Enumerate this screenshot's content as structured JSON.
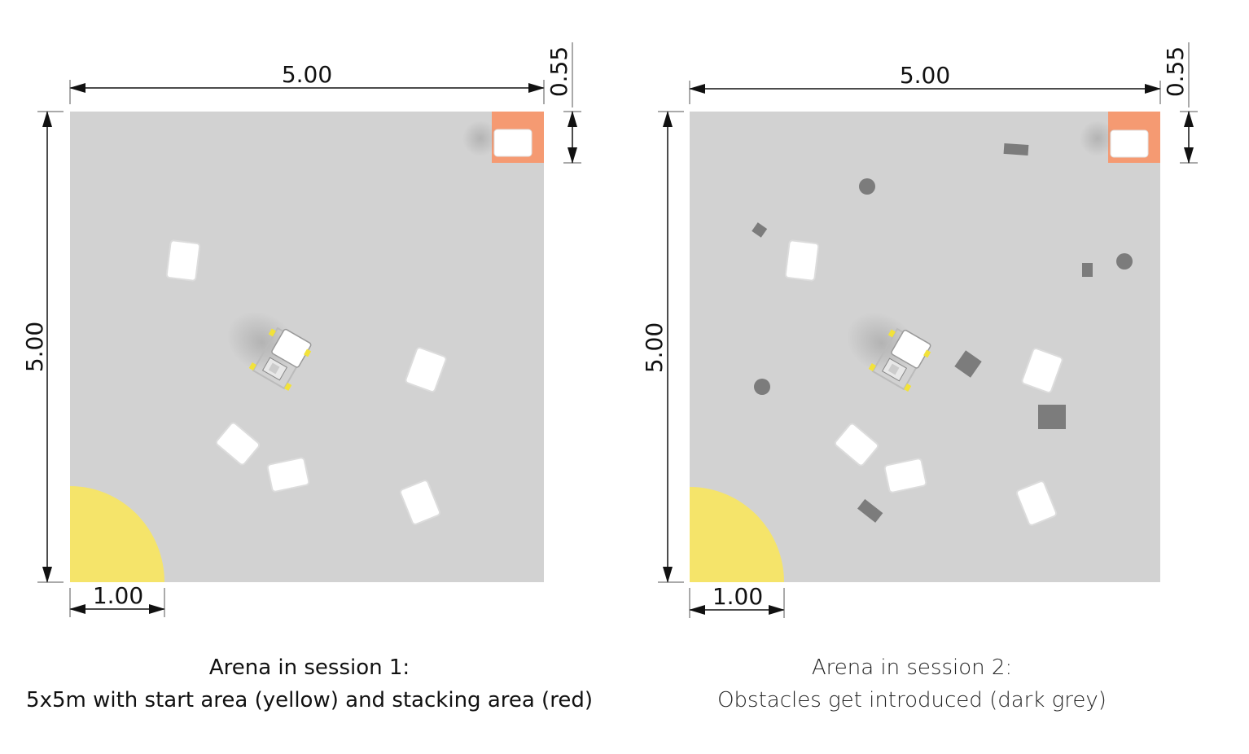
{
  "colors": {
    "floor": "#d2d2d2",
    "start_area": "#f5e46a",
    "stacking_area": "#f59a72",
    "block": "#ffffff",
    "obstacle": "#7c7c7c"
  },
  "panels": [
    {
      "dims": {
        "width": "5.00",
        "height": "5.00",
        "start_radius": "1.00",
        "stack_size": "0.55"
      },
      "caption": {
        "line1": "Arena in session 1:",
        "line2": "5x5m with start area (yellow) and stacking area (red)"
      }
    },
    {
      "dims": {
        "width": "5.00",
        "height": "5.00",
        "start_radius": "1.00",
        "stack_size": "0.55"
      },
      "caption": {
        "line1": "Arena in session 2:",
        "line2": "Obstacles get introduced (dark grey)"
      }
    }
  ]
}
